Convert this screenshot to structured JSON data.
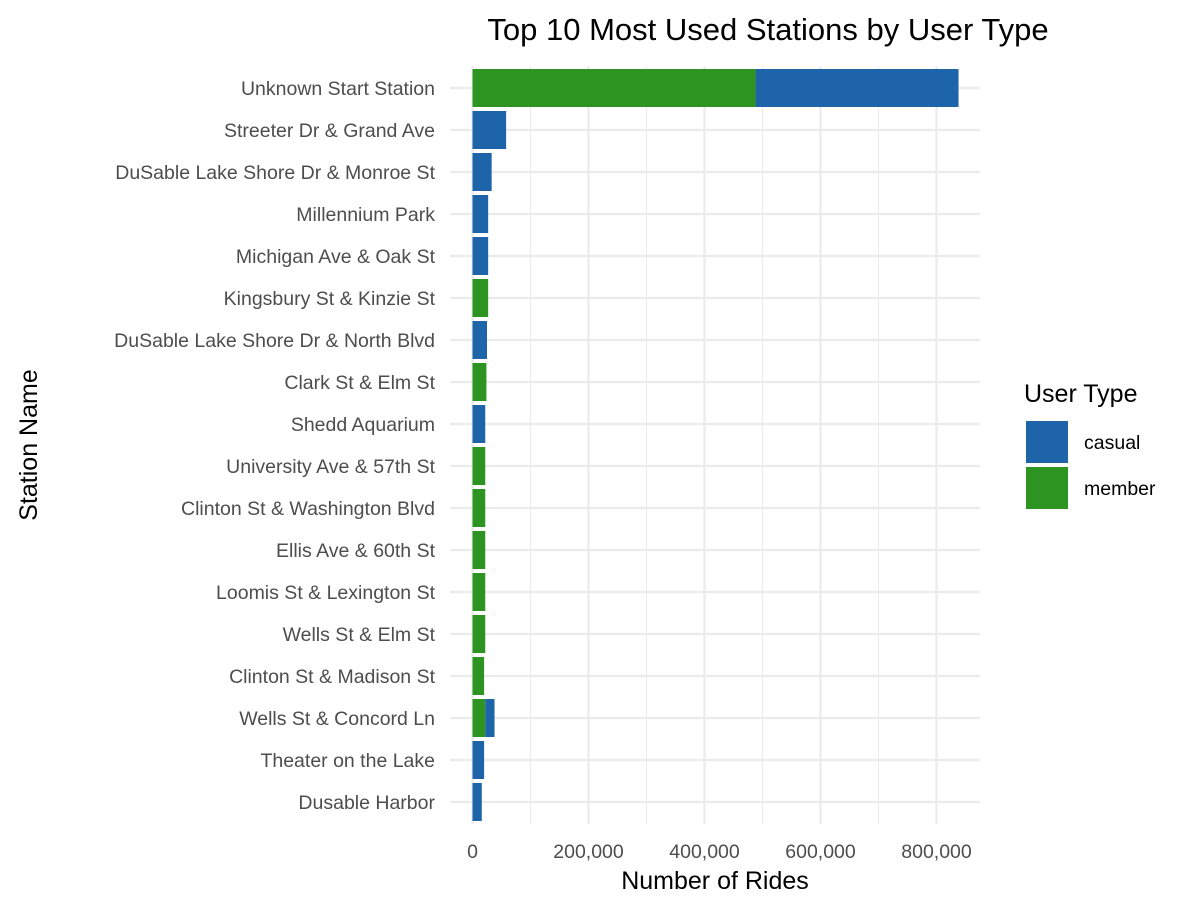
{
  "chart_data": {
    "type": "bar",
    "orientation": "horizontal",
    "stacked": true,
    "title": "Top 10 Most Used Stations by User Type",
    "xlabel": "Number of Rides",
    "ylabel": "Station Name",
    "xlim": [
      0,
      880000
    ],
    "xticks": [
      0,
      200000,
      400000,
      600000,
      800000
    ],
    "xtick_labels": [
      "0",
      "200,000",
      "400,000",
      "600,000",
      "800,000"
    ],
    "grid": true,
    "legend": {
      "title": "User Type",
      "position": "right"
    },
    "categories": [
      "Unknown Start Station",
      "Streeter Dr & Grand Ave",
      "DuSable Lake Shore Dr & Monroe St",
      "Millennium Park",
      "Michigan Ave & Oak St",
      "Kingsbury St & Kinzie St",
      "DuSable Lake Shore Dr & North Blvd",
      "Clark St & Elm St",
      "Shedd Aquarium",
      "University Ave & 57th St",
      "Clinton St & Washington Blvd",
      "Ellis Ave & 60th St",
      "Loomis St & Lexington St",
      "Wells St & Elm St",
      "Clinton St & Madison St",
      "Wells St & Concord Ln",
      "Theater on the Lake",
      "Dusable Harbor"
    ],
    "series": [
      {
        "name": "member",
        "color": "#2e9421",
        "values": [
          488000,
          0,
          0,
          0,
          0,
          27000,
          0,
          24000,
          0,
          22000,
          22000,
          22000,
          22000,
          22000,
          20000,
          22000,
          0,
          0
        ]
      },
      {
        "name": "casual",
        "color": "#1e64a8",
        "values": [
          350000,
          58000,
          33000,
          27000,
          27000,
          0,
          25000,
          0,
          22000,
          0,
          0,
          0,
          0,
          0,
          0,
          16000,
          20000,
          16000
        ]
      }
    ]
  }
}
